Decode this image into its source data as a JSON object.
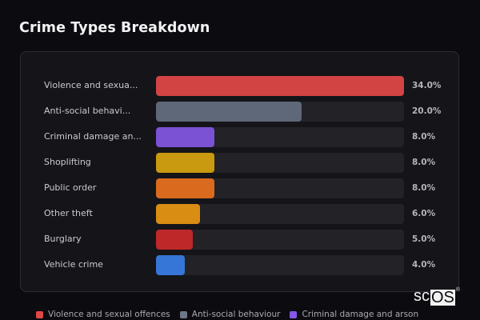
{
  "header": {
    "title": "Crime Types Breakdown"
  },
  "chart_data": {
    "type": "bar",
    "orientation": "horizontal",
    "title": "Crime Types Breakdown",
    "xlabel": "",
    "ylabel": "",
    "xlim": [
      0,
      34
    ],
    "grid": false,
    "legend_position": "bottom",
    "categories": [
      "Violence and sexual offences",
      "Anti-social behaviour",
      "Criminal damage and arson",
      "Shoplifting",
      "Public order",
      "Other theft",
      "Burglary",
      "Vehicle crime"
    ],
    "display_labels": [
      "Violence and sexua...",
      "Anti-social behavi...",
      "Criminal damage an...",
      "Shoplifting",
      "Public order",
      "Other theft",
      "Burglary",
      "Vehicle crime"
    ],
    "values": [
      34.0,
      20.0,
      8.0,
      8.0,
      8.0,
      6.0,
      5.0,
      4.0
    ],
    "value_labels": [
      "34.0%",
      "20.0%",
      "8.0%",
      "8.0%",
      "8.0%",
      "6.0%",
      "5.0%",
      "4.0%"
    ],
    "colors": [
      "#d24343",
      "#5e6879",
      "#7a52d3",
      "#c9990f",
      "#d96a1e",
      "#d98d12",
      "#bf2828",
      "#3676d6"
    ]
  },
  "legend": [
    {
      "label": "Violence and sexual offences",
      "color": "#e04848"
    },
    {
      "label": "Anti-social behaviour",
      "color": "#6d7789"
    },
    {
      "label": "Criminal damage and arson",
      "color": "#8457e8"
    }
  ],
  "watermark": {
    "left": "sc",
    "boxed": "OS",
    "mark": "®"
  }
}
